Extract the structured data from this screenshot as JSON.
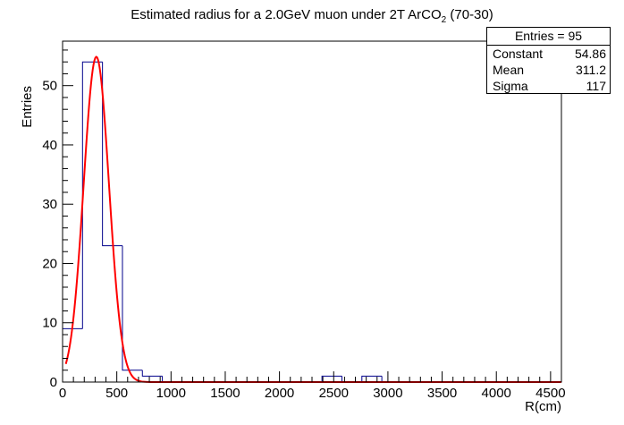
{
  "chart_data": {
    "type": "histogram",
    "title_main": "Estimated radius for a 2.0GeV muon under 2T ArCO",
    "title_sub": "2",
    "title_tail": " (70-30)",
    "xlabel": "R(cm)",
    "ylabel": "Entries",
    "xlim": [
      0,
      4600
    ],
    "ylim": [
      0,
      57.5
    ],
    "x_ticks": [
      0,
      500,
      1000,
      1500,
      2000,
      2500,
      3000,
      3500,
      4000,
      4500
    ],
    "x_tick_labels": [
      "0",
      "500",
      "1000",
      "1500",
      "2000",
      "2500",
      "3000",
      "3500",
      "4000",
      "4500"
    ],
    "y_ticks": [
      0,
      10,
      20,
      30,
      40,
      50
    ],
    "y_tick_labels": [
      "0",
      "10",
      "20",
      "30",
      "40",
      "50"
    ],
    "bin_width": 184,
    "bins": [
      {
        "x0": 0,
        "x1": 184,
        "count": 9
      },
      {
        "x0": 184,
        "x1": 368,
        "count": 54
      },
      {
        "x0": 368,
        "x1": 552,
        "count": 23
      },
      {
        "x0": 552,
        "x1": 736,
        "count": 2
      },
      {
        "x0": 736,
        "x1": 920,
        "count": 1
      },
      {
        "x0": 920,
        "x1": 1104,
        "count": 0
      },
      {
        "x0": 1104,
        "x1": 1288,
        "count": 0
      },
      {
        "x0": 1288,
        "x1": 1472,
        "count": 0
      },
      {
        "x0": 1472,
        "x1": 1656,
        "count": 0
      },
      {
        "x0": 1656,
        "x1": 1840,
        "count": 0
      },
      {
        "x0": 1840,
        "x1": 2024,
        "count": 0
      },
      {
        "x0": 2024,
        "x1": 2208,
        "count": 0
      },
      {
        "x0": 2208,
        "x1": 2392,
        "count": 0
      },
      {
        "x0": 2392,
        "x1": 2576,
        "count": 1
      },
      {
        "x0": 2576,
        "x1": 2760,
        "count": 0
      },
      {
        "x0": 2760,
        "x1": 2944,
        "count": 1
      },
      {
        "x0": 2944,
        "x1": 3128,
        "count": 0
      },
      {
        "x0": 3128,
        "x1": 3312,
        "count": 0
      },
      {
        "x0": 3312,
        "x1": 3496,
        "count": 0
      },
      {
        "x0": 3496,
        "x1": 3680,
        "count": 0
      },
      {
        "x0": 3680,
        "x1": 3864,
        "count": 0
      },
      {
        "x0": 3864,
        "x1": 4048,
        "count": 0
      },
      {
        "x0": 4048,
        "x1": 4232,
        "count": 0
      },
      {
        "x0": 4232,
        "x1": 4416,
        "count": 0
      },
      {
        "x0": 4416,
        "x1": 4600,
        "count": 0
      }
    ],
    "fit": {
      "function": "gaus",
      "constant": 54.86,
      "mean": 311.2,
      "sigma": 117
    },
    "histogram_color": "#00008b",
    "fit_color": "#ff0000",
    "grid": false,
    "legend": "top-right"
  },
  "stats": {
    "entries_label": "Entries = 95",
    "rows": [
      {
        "name": "Constant",
        "value": "54.86"
      },
      {
        "name": "Mean",
        "value": "311.2"
      },
      {
        "name": "Sigma",
        "value": "117"
      }
    ]
  }
}
